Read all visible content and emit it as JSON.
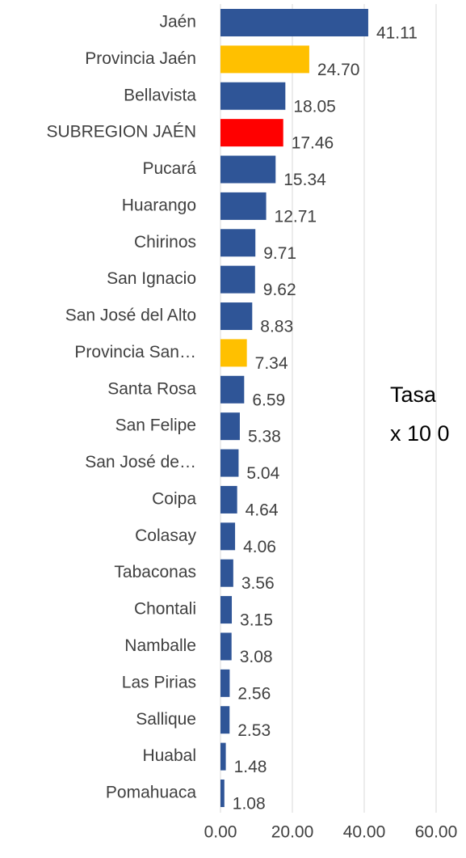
{
  "chart_data": {
    "type": "bar",
    "orientation": "horizontal",
    "categories": [
      "Jaén",
      "Provincia Jaén",
      "Bellavista",
      "SUBREGION JAÉN",
      "Pucará",
      "Huarango",
      "Chirinos",
      "San Ignacio",
      "San José del Alto",
      "Provincia San…",
      "Santa Rosa",
      "San Felipe",
      "San José de…",
      "Coipa",
      "Colasay",
      "Tabaconas",
      "Chontali",
      "Namballe",
      "Las Pirias",
      "Sallique",
      "Huabal",
      "Pomahuaca"
    ],
    "values": [
      41.11,
      24.7,
      18.05,
      17.46,
      15.34,
      12.71,
      9.71,
      9.62,
      8.83,
      7.34,
      6.59,
      5.38,
      5.04,
      4.64,
      4.06,
      3.56,
      3.15,
      3.08,
      2.56,
      2.53,
      1.48,
      1.08
    ],
    "value_labels": [
      "41.11",
      "24.70",
      "18.05",
      "17.46",
      "15.34",
      "12.71",
      "9.71",
      "9.62",
      "8.83",
      "7.34",
      "6.59",
      "5.38",
      "5.04",
      "4.64",
      "4.06",
      "3.56",
      "3.15",
      "3.08",
      "2.56",
      "2.53",
      "1.48",
      "1.08"
    ],
    "colors": [
      "#2f5597",
      "#ffc000",
      "#2f5597",
      "#ff0000",
      "#2f5597",
      "#2f5597",
      "#2f5597",
      "#2f5597",
      "#2f5597",
      "#ffc000",
      "#2f5597",
      "#2f5597",
      "#2f5597",
      "#2f5597",
      "#2f5597",
      "#2f5597",
      "#2f5597",
      "#2f5597",
      "#2f5597",
      "#2f5597",
      "#2f5597",
      "#2f5597"
    ],
    "xlim": [
      0,
      60
    ],
    "xticks": [
      {
        "value": 0,
        "label": "0.00"
      },
      {
        "value": 20,
        "label": "20.00"
      },
      {
        "value": 40,
        "label": "40.00"
      },
      {
        "value": 60,
        "label": "60.00"
      }
    ],
    "grid": true,
    "annotations": [
      "Tasa",
      "x 10 0"
    ]
  }
}
